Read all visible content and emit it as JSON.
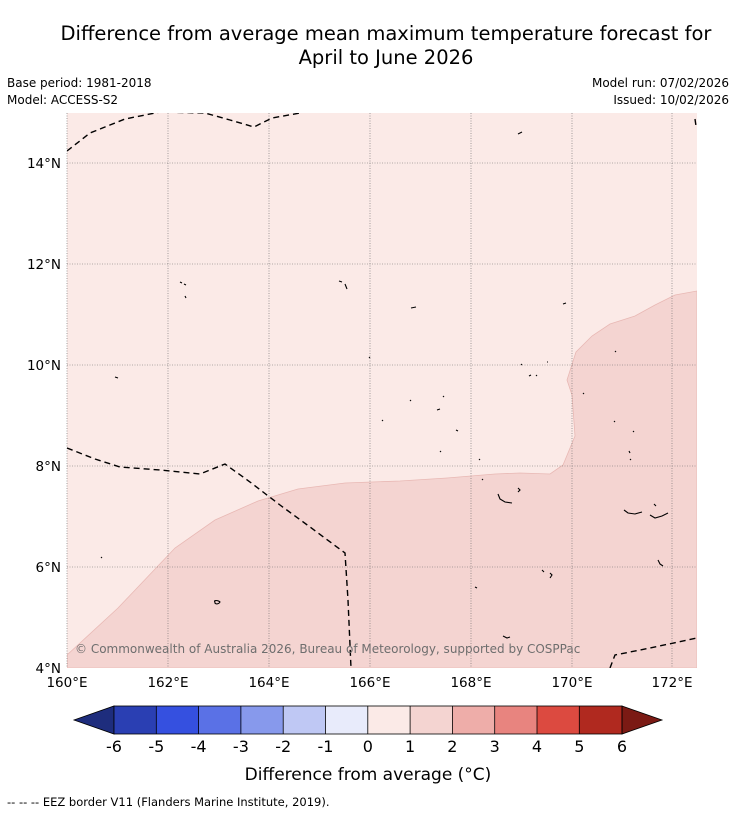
{
  "title_line1": "Difference from average mean maximum temperature forecast for",
  "title_line2": "April to June 2026",
  "base_period": "Base period: 1981-2018",
  "model": "Model: ACCESS-S2",
  "model_run": "Model run: 07/02/2026",
  "issued": "Issued: 10/02/2026",
  "copyright": "© Commonwealth of Australia 2026, Bureau of Meteorology, supported by COSPPac",
  "footer": "-- -- -- EEZ border V11 (Flanders Marine Institute, 2019).",
  "map": {
    "lon_range": [
      160,
      172.5
    ],
    "lat_range": [
      4,
      15
    ],
    "lon_ticks": [
      "160°E",
      "162°E",
      "164°E",
      "166°E",
      "168°E",
      "170°E",
      "172°E"
    ],
    "lat_ticks": [
      "4°N",
      "6°N",
      "8°N",
      "10°N",
      "12°N",
      "14°N"
    ],
    "fill_colors": {
      "0_to_1": "#fbeae7",
      "1_to_2": "#f4d4d1"
    }
  },
  "colorbar": {
    "label": "Difference from average (°C)",
    "ticks": [
      "-6",
      "-5",
      "-4",
      "-3",
      "-2",
      "-1",
      "0",
      "1",
      "2",
      "3",
      "4",
      "5",
      "6"
    ],
    "colors": [
      "#1e2d7d",
      "#2a3fb3",
      "#3550e0",
      "#5a71e6",
      "#8799ec",
      "#bfc8f4",
      "#e8ebfb",
      "#fbeae7",
      "#f4d4d1",
      "#eeada9",
      "#e8847f",
      "#dc4a40",
      "#b0291f",
      "#7b1a14"
    ]
  }
}
